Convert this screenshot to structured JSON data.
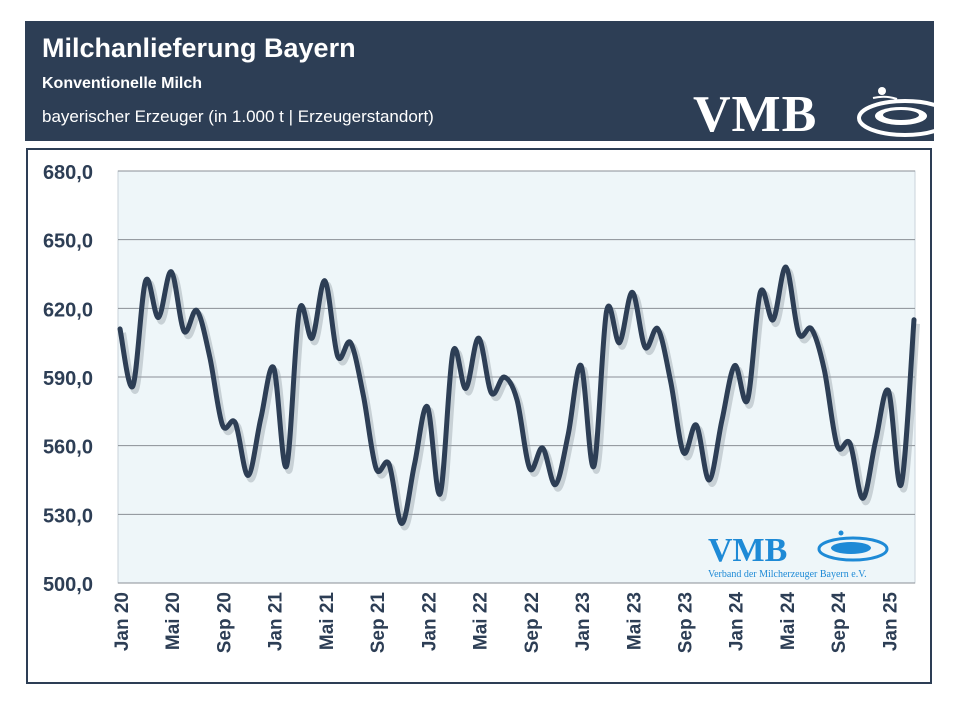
{
  "header": {
    "title": "Milchanlieferung Bayern",
    "subtitle": "Konventionelle Milch",
    "subtitle2": "bayerischer Erzeuger (in 1.000 t | Erzeugerstandort)",
    "logo_text": "VMB"
  },
  "watermark": {
    "logo_text": "VMB",
    "caption": "Verband der Milcherzeuger Bayern e.V."
  },
  "colors": {
    "header_bg": "#2d3e55",
    "line": "#2d3e55",
    "plot_bg": "#eef6f9",
    "logo_blue": "#1e8ad6"
  },
  "chart_data": {
    "type": "line",
    "title": "Milchanlieferung Bayern",
    "xlabel": "",
    "ylabel": "",
    "ylim": [
      500,
      680
    ],
    "yticks": [
      "500,0",
      "530,0",
      "560,0",
      "590,0",
      "620,0",
      "650,0",
      "680,0"
    ],
    "ytick_values": [
      500,
      530,
      560,
      590,
      620,
      650,
      680
    ],
    "xtick_labels": [
      "Jan 20",
      "Mai 20",
      "Sep 20",
      "Jan 21",
      "Mai 21",
      "Sep 21",
      "Jan 22",
      "Mai 22",
      "Sep 22",
      "Jan 23",
      "Mai 23",
      "Sep 23",
      "Jan 24",
      "Mai 24",
      "Sep 24",
      "Jan 25"
    ],
    "xtick_index": [
      0,
      4,
      8,
      12,
      16,
      20,
      24,
      28,
      32,
      36,
      40,
      44,
      48,
      52,
      56,
      60
    ],
    "grid": true,
    "legend": "none",
    "series": [
      {
        "values": [
          611,
          586,
          632,
          616,
          636,
          610,
          619,
          599,
          569,
          570,
          547,
          572,
          594,
          551,
          619,
          607,
          632,
          599,
          605,
          582,
          550,
          552,
          526,
          552,
          577,
          539,
          601,
          585,
          607,
          583,
          590,
          580,
          550,
          559,
          543,
          565,
          595,
          551,
          619,
          605,
          627,
          603,
          611,
          588,
          557,
          569,
          545,
          571,
          595,
          580,
          627,
          615,
          638,
          609,
          611,
          593,
          560,
          561,
          537,
          562,
          584,
          543,
          615
        ]
      }
    ]
  }
}
